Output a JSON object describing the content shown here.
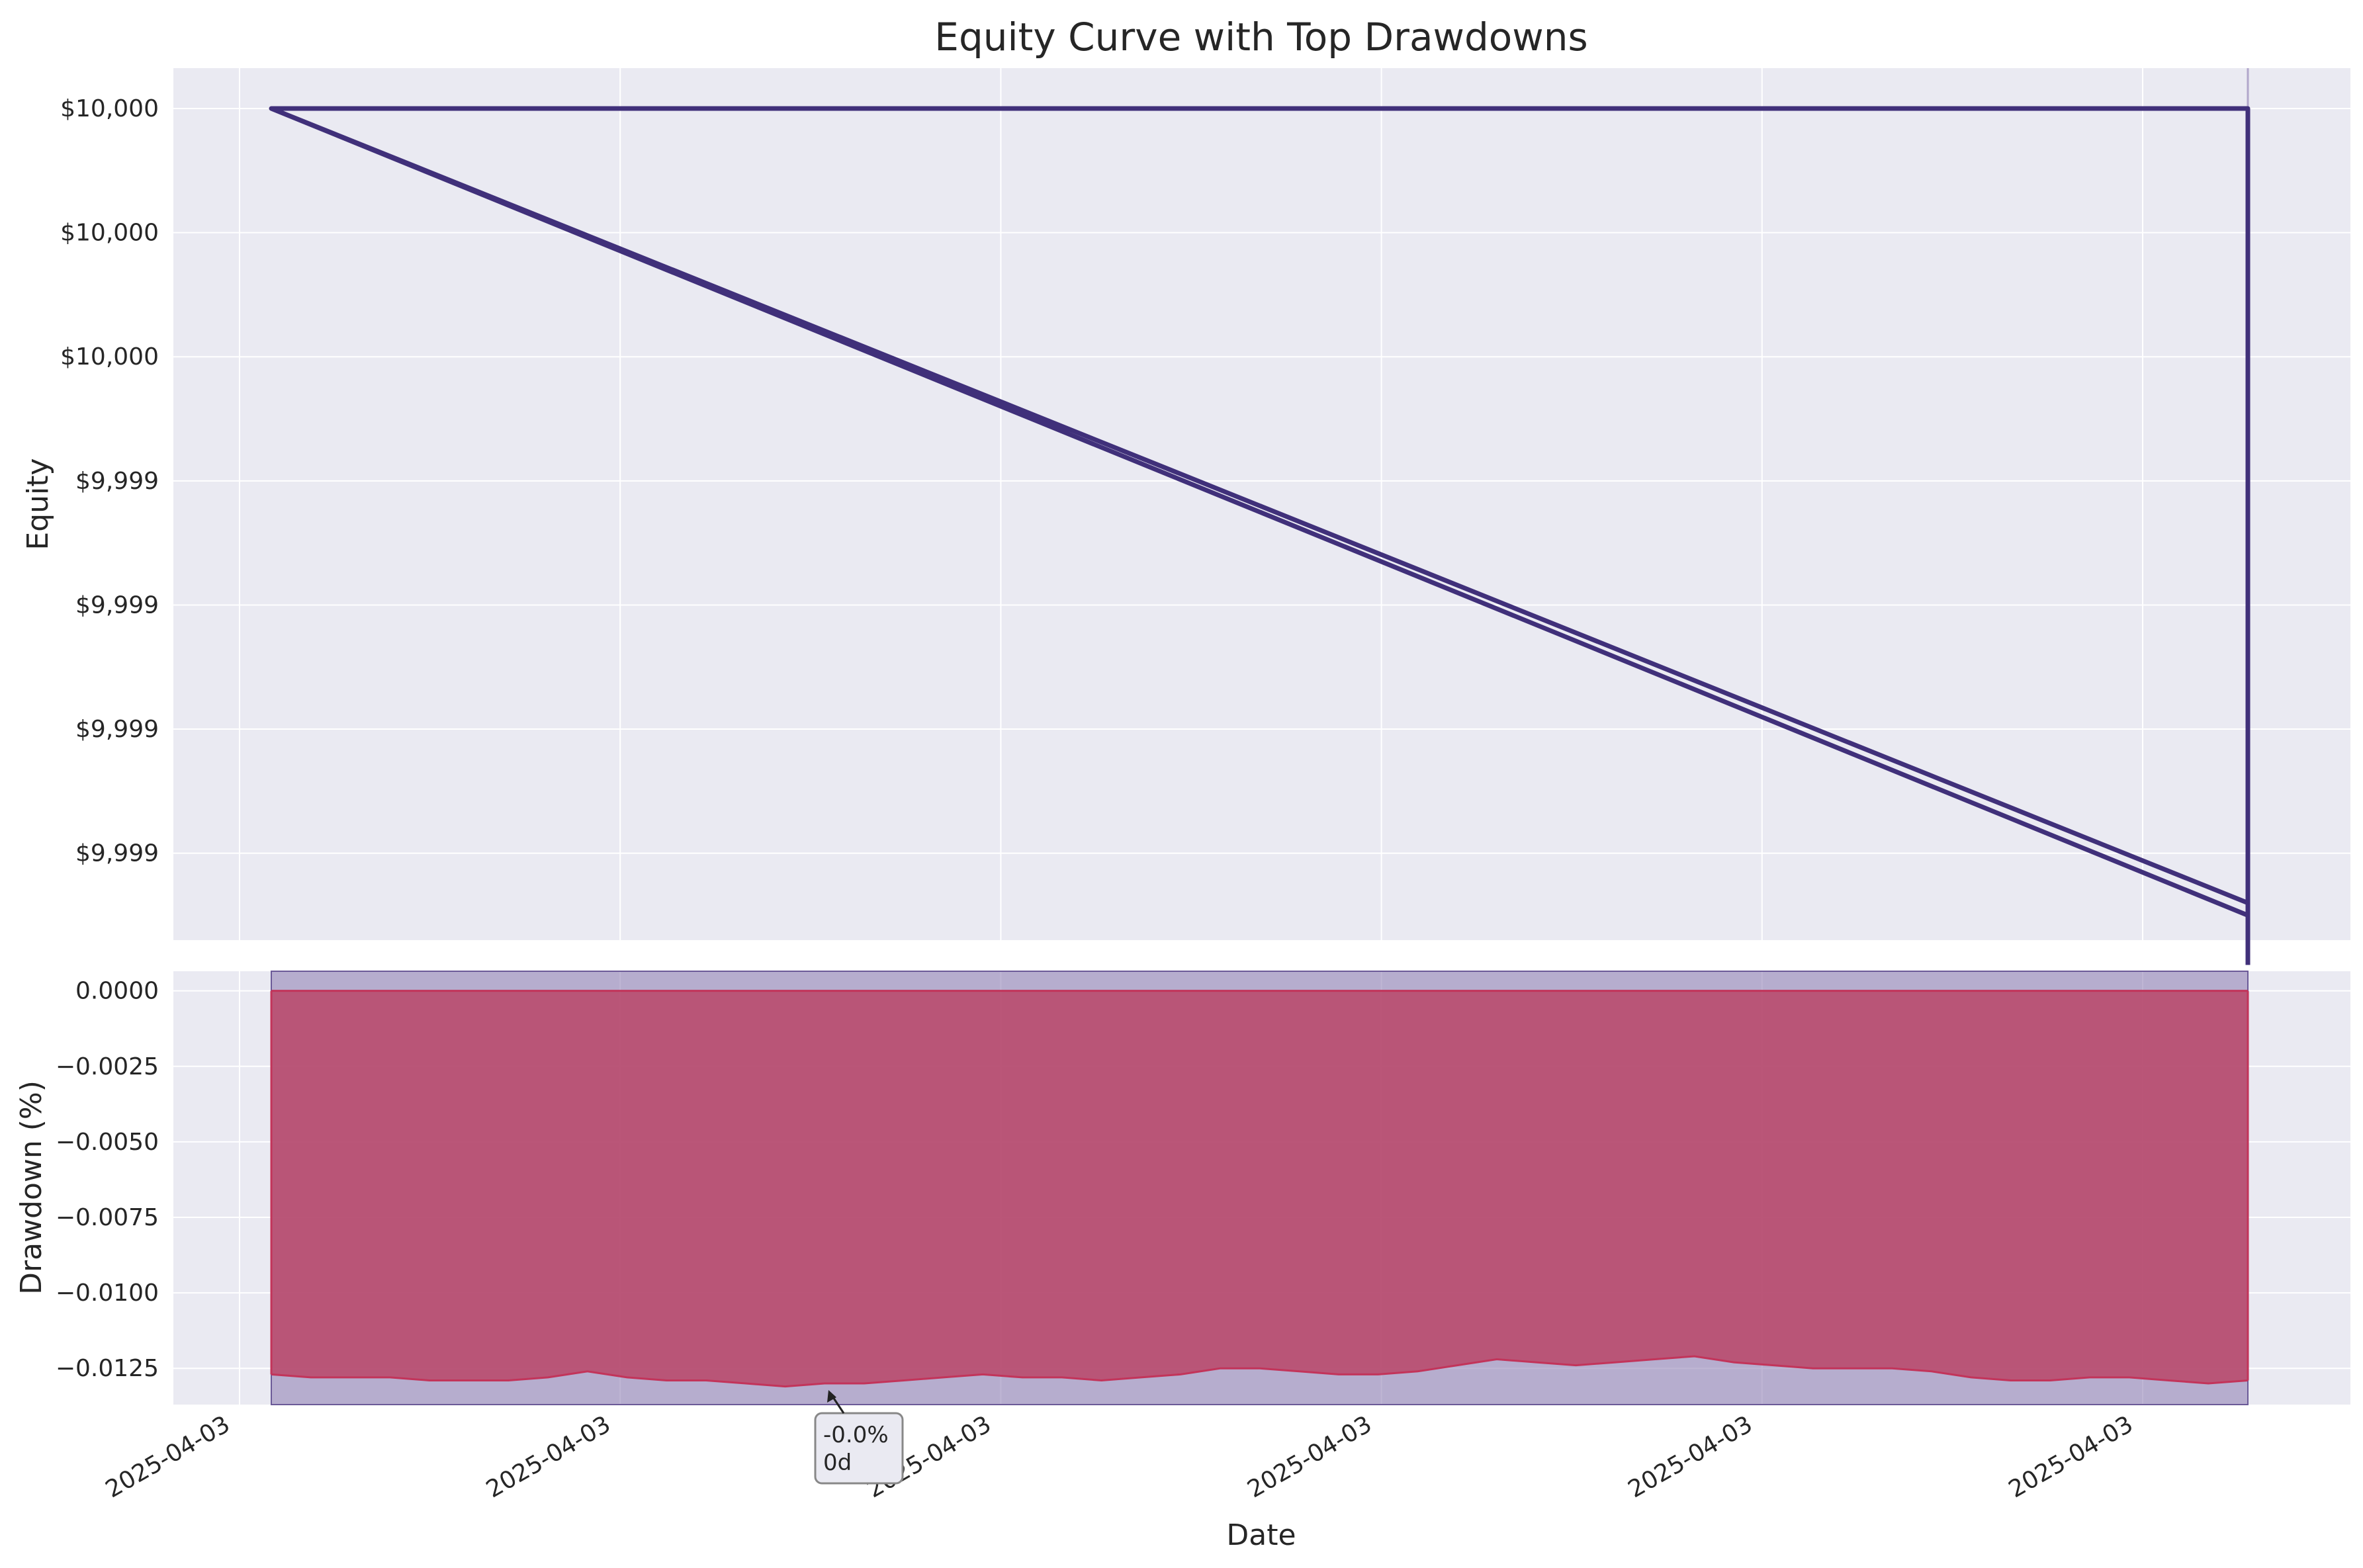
{
  "chart_data": [
    {
      "type": "line",
      "title": "Equity Curve with Top Drawdowns",
      "xlabel": "",
      "ylabel": "Equity",
      "ytick_labels": [
        "$10,000",
        "$10,000",
        "$10,000",
        "$9,999",
        "$9,999",
        "$9,999",
        "$9,999"
      ],
      "ytick_values": [
        10000.0,
        9999.8,
        9999.6,
        9999.4,
        9999.2,
        9999.0,
        9998.8
      ],
      "ylim": [
        9998.66,
        10000.065
      ],
      "grid": true,
      "series": [
        {
          "values_description_free": true,
          "x": [
            0.0,
            1.0,
            1.0,
            0.0,
            1.0,
            1.0,
            1.0
          ],
          "y": [
            10000.0,
            10000.0,
            9998.72,
            10000.0,
            9998.7,
            9998.8,
            9998.62
          ]
        }
      ],
      "drawdown_highlight_x": [
        1.0
      ],
      "colors": {
        "line": "#40307a",
        "plot_bg": "#eaeaf2",
        "highlight": "#8a7ab0"
      }
    },
    {
      "type": "area",
      "title": "",
      "xlabel": "Date",
      "ylabel": "Drawdown (%)",
      "ytick_labels": [
        "0.0000",
        "−0.0025",
        "−0.0050",
        "−0.0075",
        "−0.0100",
        "−0.0125"
      ],
      "ytick_values": [
        0.0,
        -0.0025,
        -0.005,
        -0.0075,
        -0.01,
        -0.0125
      ],
      "ylim": [
        -0.0137,
        0.00065
      ],
      "xtick_labels": [
        "2025-04-03",
        "2025-04-03",
        "2025-04-03",
        "2025-04-03",
        "2025-04-03",
        "2025-04-03"
      ],
      "grid": true,
      "drawdown_x": [
        0.0,
        0.02,
        0.04,
        0.06,
        0.08,
        0.1,
        0.12,
        0.14,
        0.16,
        0.18,
        0.2,
        0.22,
        0.24,
        0.26,
        0.28,
        0.3,
        0.32,
        0.34,
        0.36,
        0.38,
        0.4,
        0.42,
        0.44,
        0.46,
        0.48,
        0.5,
        0.52,
        0.54,
        0.56,
        0.58,
        0.6,
        0.62,
        0.64,
        0.66,
        0.68,
        0.7,
        0.72,
        0.74,
        0.76,
        0.78,
        0.8,
        0.82,
        0.84,
        0.86,
        0.88,
        0.9,
        0.92,
        0.94,
        0.96,
        0.98,
        1.0
      ],
      "drawdown_y": [
        -0.0127,
        -0.0128,
        -0.0128,
        -0.0128,
        -0.0129,
        -0.0129,
        -0.0129,
        -0.0128,
        -0.0126,
        -0.0128,
        -0.0129,
        -0.0129,
        -0.013,
        -0.0131,
        -0.013,
        -0.013,
        -0.0129,
        -0.0128,
        -0.0127,
        -0.0128,
        -0.0128,
        -0.0129,
        -0.0128,
        -0.0127,
        -0.0125,
        -0.0125,
        -0.0126,
        -0.0127,
        -0.0127,
        -0.0126,
        -0.0124,
        -0.0122,
        -0.0123,
        -0.0124,
        -0.0123,
        -0.0122,
        -0.0121,
        -0.0123,
        -0.0124,
        -0.0125,
        -0.0125,
        -0.0125,
        -0.0126,
        -0.0128,
        -0.0129,
        -0.0129,
        -0.0128,
        -0.0128,
        -0.0129,
        -0.013,
        -0.0129
      ],
      "annotation": {
        "line1": "-0.0%",
        "line2": "0d",
        "x": 0.283,
        "y": -0.0131
      },
      "colors": {
        "fill": "#b94b6e",
        "line": "#c2345a",
        "highlight": "#8a7ab0",
        "plot_bg": "#eaeaf2"
      }
    }
  ]
}
